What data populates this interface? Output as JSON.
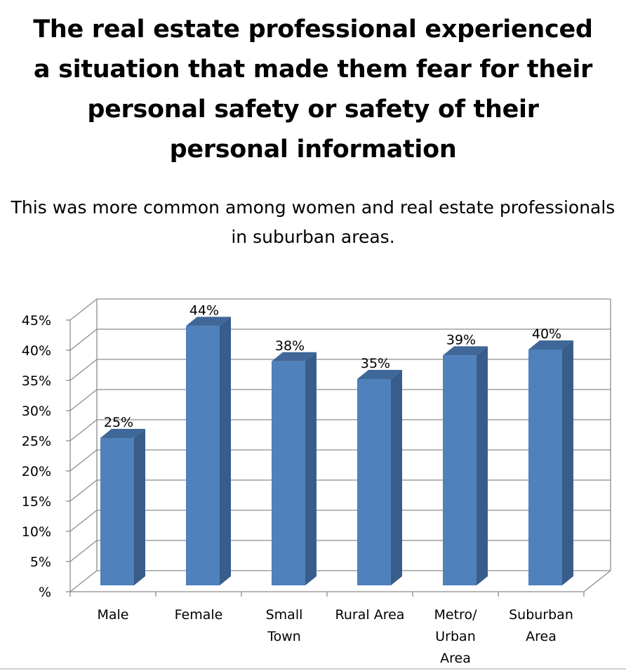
{
  "chart_data": {
    "type": "bar",
    "title": "The real estate professional experienced a situation that made them fear for their personal safety or safety of their personal information",
    "subtitle": "This was more common among women and real estate professionals in suburban areas.",
    "xlabel": "",
    "ylabel": "",
    "categories": [
      [
        "Male"
      ],
      [
        "Female"
      ],
      [
        "Small",
        "Town"
      ],
      [
        "Rural Area"
      ],
      [
        "Metro/",
        "Urban",
        "Area"
      ],
      [
        "Suburban",
        "Area"
      ]
    ],
    "values": [
      25,
      44,
      38,
      35,
      39,
      40
    ],
    "data_labels": [
      "25%",
      "44%",
      "38%",
      "35%",
      "39%",
      "40%"
    ],
    "y_ticks": [
      "%",
      "5%",
      "10%",
      "15%",
      "20%",
      "25%",
      "30%",
      "35%",
      "40%",
      "45%"
    ],
    "ylim": [
      0,
      45
    ],
    "grid": true,
    "style": "3d-bar",
    "colors": {
      "bar_front": "#4f81bd",
      "bar_side": "#385d8a",
      "bar_top": "#3f6797",
      "grid": "#8c8c8c"
    }
  }
}
